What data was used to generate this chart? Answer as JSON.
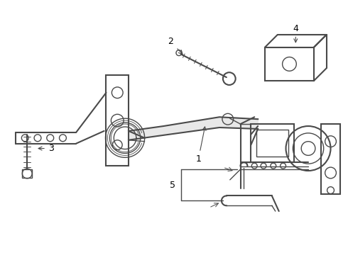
{
  "background_color": "#ffffff",
  "line_color": "#4a4a4a",
  "label_color": "#000000",
  "figsize": [
    4.9,
    3.6
  ],
  "dpi": 100,
  "border_color": "#cccccc"
}
